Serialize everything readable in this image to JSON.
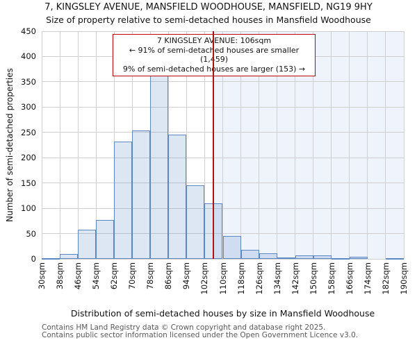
{
  "chart_data": {
    "type": "bar",
    "title": "7, KINGSLEY AVENUE, MANSFIELD WOODHOUSE, MANSFIELD, NG19 9HY",
    "subtitle": "Size of property relative to semi-detached houses in Mansfield Woodhouse",
    "xlabel": "Distribution of semi-detached houses by size in Mansfield Woodhouse",
    "ylabel": "Number of semi-detached properties",
    "ylim": [
      0,
      450
    ],
    "y_ticks": [
      0,
      50,
      100,
      150,
      200,
      250,
      300,
      350,
      400,
      450
    ],
    "bin_edges_sqm": [
      30,
      38,
      46,
      54,
      62,
      70,
      78,
      86,
      94,
      102,
      110,
      118,
      126,
      134,
      142,
      150,
      158,
      166,
      174,
      182,
      190
    ],
    "x_tick_labels": [
      "30sqm",
      "38sqm",
      "46sqm",
      "54sqm",
      "62sqm",
      "70sqm",
      "78sqm",
      "86sqm",
      "94sqm",
      "102sqm",
      "110sqm",
      "118sqm",
      "126sqm",
      "134sqm",
      "142sqm",
      "150sqm",
      "158sqm",
      "166sqm",
      "174sqm",
      "182sqm",
      "190sqm"
    ],
    "values": [
      2,
      10,
      58,
      77,
      232,
      254,
      375,
      245,
      146,
      110,
      45,
      18,
      11,
      3,
      7,
      7,
      2,
      4,
      0,
      1
    ],
    "grid": true,
    "marker_value_sqm": 106,
    "shaded_region_sqm": [
      106,
      190
    ]
  },
  "annotation": {
    "line1": "7 KINGSLEY AVENUE: 106sqm",
    "line2": "← 91% of semi-detached houses are smaller (1,459)",
    "line3": "9% of semi-detached houses are larger (153) →"
  },
  "footer": {
    "line1": "Contains HM Land Registry data © Crown copyright and database right 2025.",
    "line2": "Contains public sector information licensed under the Open Government Licence v3.0."
  },
  "colors": {
    "bar_fill": "rgba(99,141,201,0.22)",
    "bar_edge": "#5b87c5",
    "grid": "#cfcfcf",
    "shade": "#eff3fb",
    "marker_line": "#b01010",
    "annotation_border": "#c00000",
    "footer_text": "#595959"
  }
}
